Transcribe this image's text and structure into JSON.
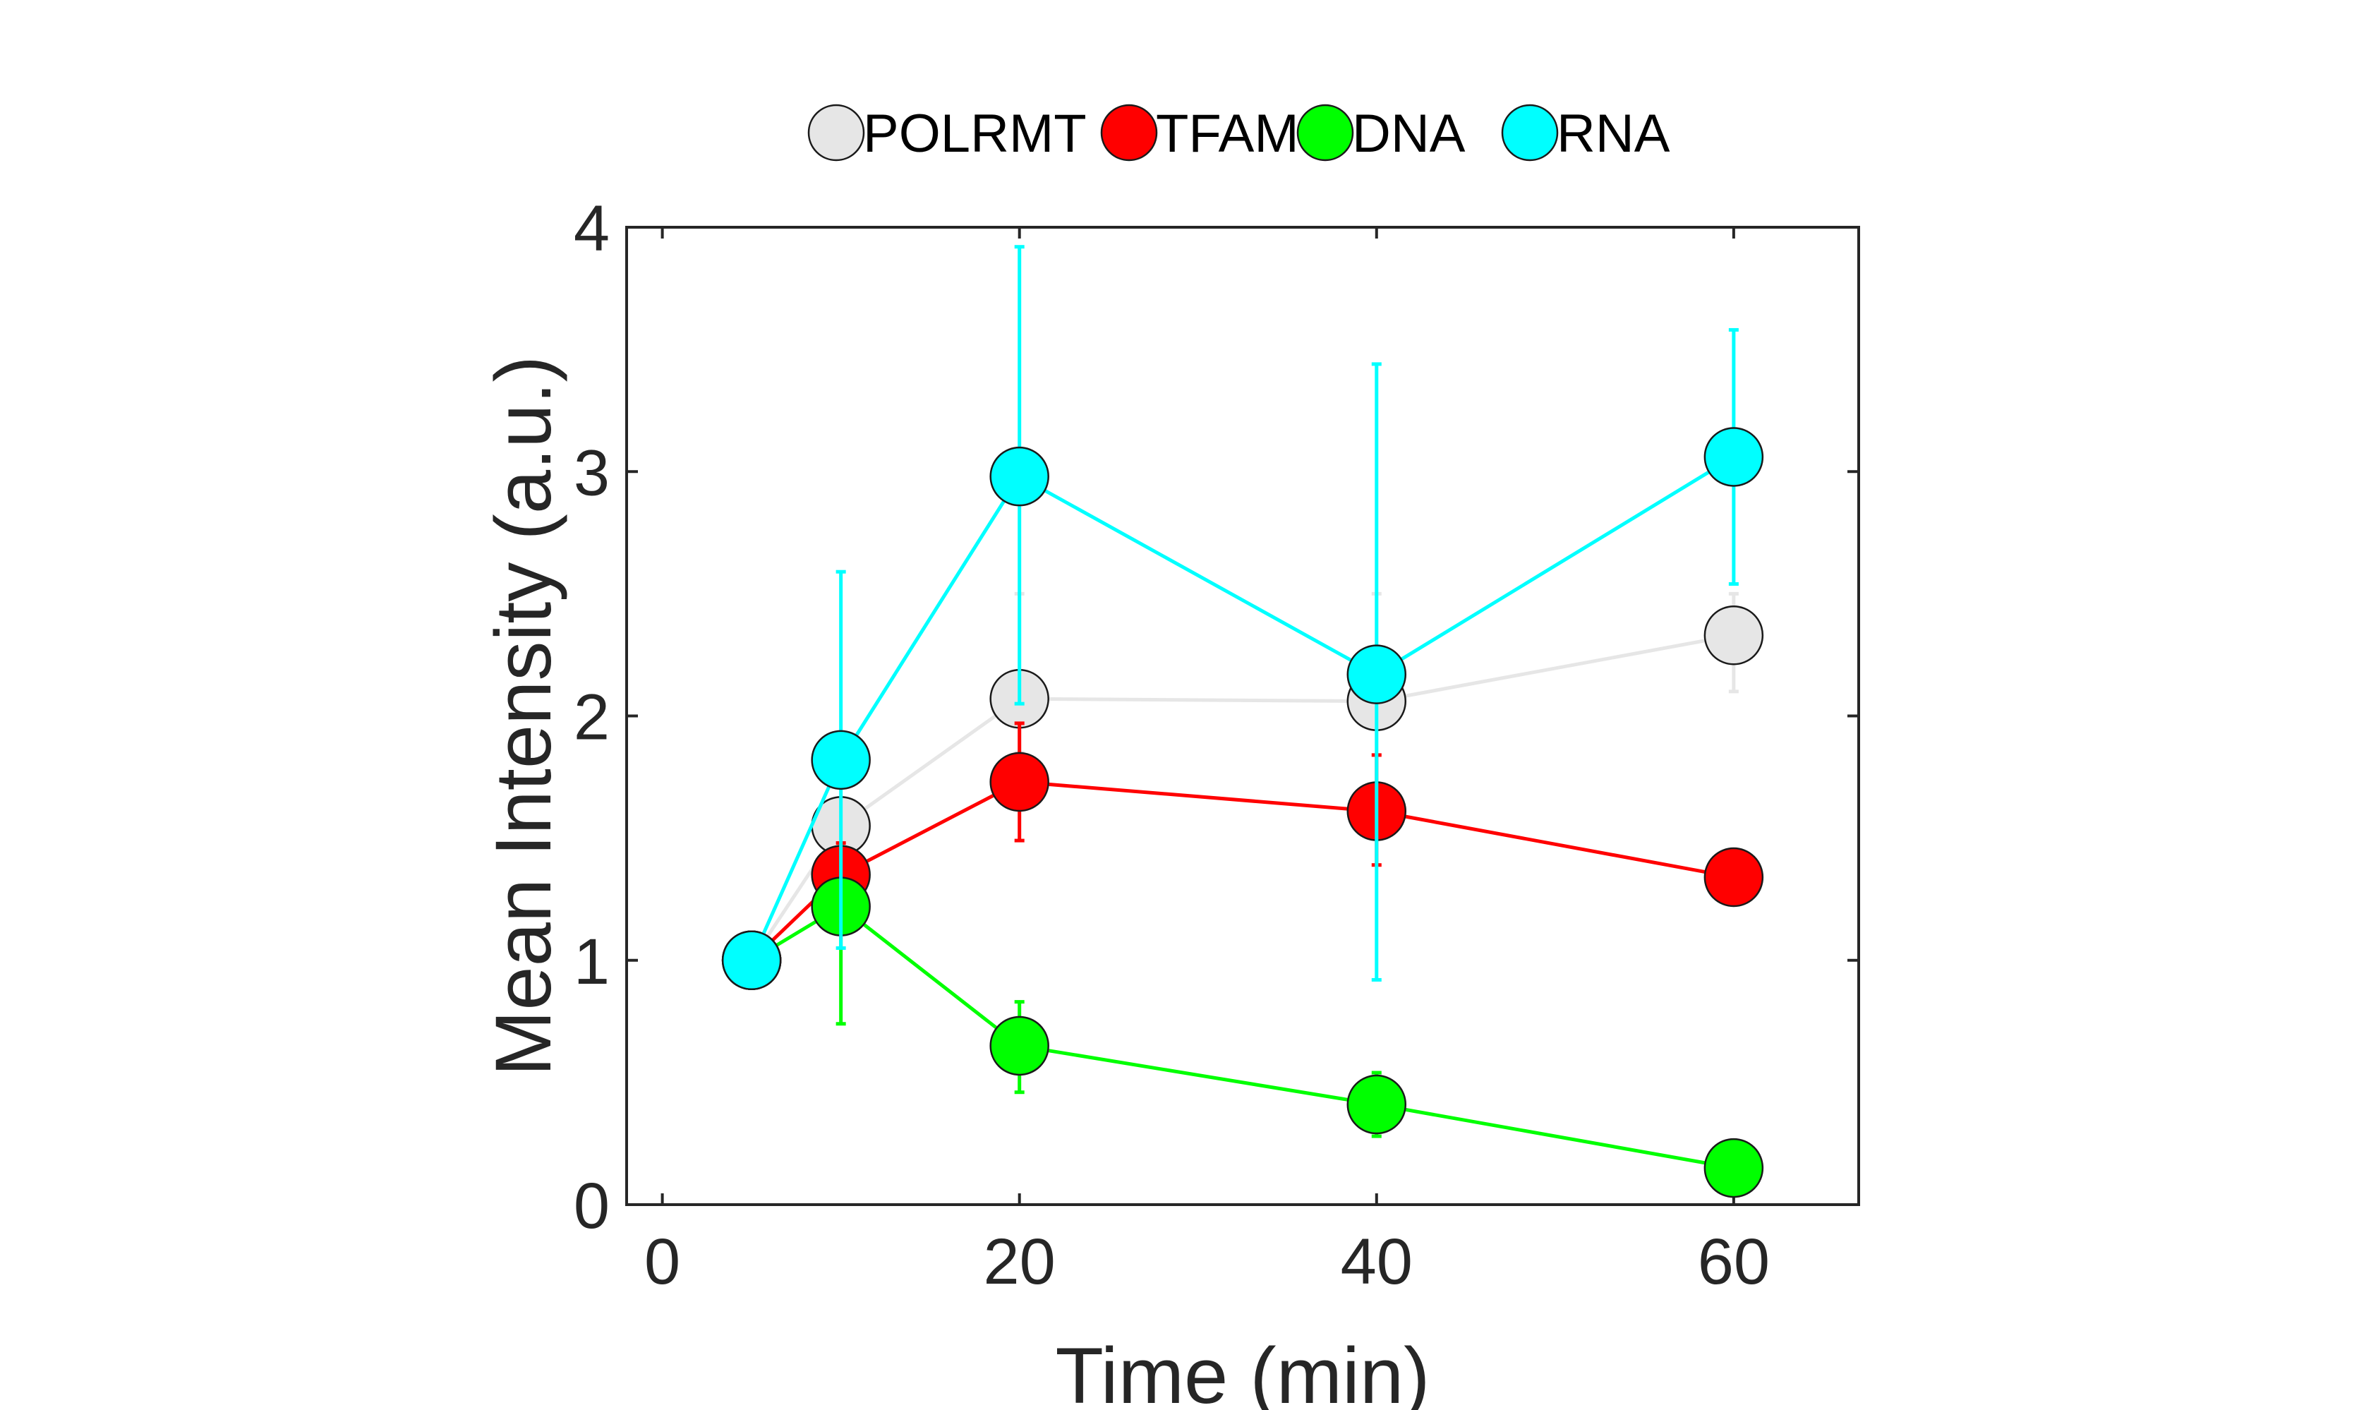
{
  "chart_data": {
    "type": "line",
    "title": "",
    "xlabel": "Time (min)",
    "ylabel": "Mean Intensity (a.u.)",
    "xlim": [
      -2,
      67
    ],
    "ylim": [
      0,
      4
    ],
    "xticks": [
      0,
      20,
      40,
      60
    ],
    "yticks": [
      0,
      1,
      2,
      3,
      4
    ],
    "xtick_labels": [
      "0",
      "20",
      "40",
      "60"
    ],
    "ytick_labels": [
      "0",
      "1",
      "2",
      "3",
      "4"
    ],
    "grid": false,
    "legend_position": "top, outside, horizontal",
    "marker": "circle",
    "series": [
      {
        "name": "POLRMT",
        "color": "#e6e6e6",
        "x": [
          5,
          10,
          20,
          40,
          60
        ],
        "y": [
          1.0,
          1.55,
          2.07,
          2.06,
          2.33
        ],
        "err_low": [
          1.0,
          1.5,
          1.85,
          1.84,
          2.1
        ],
        "err_high": [
          1.0,
          1.6,
          2.5,
          2.5,
          2.5
        ]
      },
      {
        "name": "TFAM",
        "color": "#ff0000",
        "x": [
          5,
          10,
          20,
          40,
          60
        ],
        "y": [
          1.0,
          1.35,
          1.73,
          1.61,
          1.34
        ],
        "err_low": [
          1.0,
          1.22,
          1.49,
          1.39,
          1.34
        ],
        "err_high": [
          1.0,
          1.48,
          1.97,
          1.84,
          1.34
        ]
      },
      {
        "name": "DNA",
        "color": "#00ff00",
        "x": [
          5,
          10,
          20,
          40,
          60
        ],
        "y": [
          1.0,
          1.22,
          0.65,
          0.41,
          0.15
        ],
        "err_low": [
          1.0,
          0.74,
          0.46,
          0.28,
          0.15
        ],
        "err_high": [
          1.0,
          1.25,
          0.83,
          0.54,
          0.15
        ]
      },
      {
        "name": "RNA",
        "color": "#00ffff",
        "x": [
          5,
          10,
          20,
          40,
          60
        ],
        "y": [
          1.0,
          1.82,
          2.98,
          2.17,
          3.06
        ],
        "err_low": [
          1.0,
          1.05,
          2.05,
          0.92,
          2.54
        ],
        "err_high": [
          1.0,
          2.59,
          3.92,
          3.44,
          3.58
        ]
      }
    ]
  }
}
